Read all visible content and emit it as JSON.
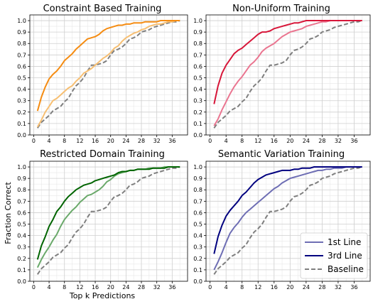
{
  "chart_data": {
    "type": "line",
    "xlabel": "Top k Predictions",
    "ylabel": "Fraction Correct",
    "xlim": [
      -1,
      40
    ],
    "ylim": [
      0,
      1.05
    ],
    "xticks": [
      0,
      4,
      8,
      12,
      16,
      20,
      24,
      28,
      32,
      36
    ],
    "yticks": [
      0.0,
      0.1,
      0.2,
      0.3,
      0.4,
      0.5,
      0.6,
      0.7,
      0.8,
      0.9,
      1.0
    ],
    "grid": true,
    "legend": {
      "placement": "bottom-right",
      "panel": 3,
      "entries": [
        {
          "label": "1st Line",
          "color": "#6e6eb4",
          "dashed": false
        },
        {
          "label": "3rd Line",
          "color": "#00007f",
          "dashed": false
        },
        {
          "label": "Baseline",
          "color": "#7f7f7f",
          "dashed": true
        }
      ]
    },
    "baseline": {
      "name": "Baseline",
      "color": "#7f7f7f",
      "x": [
        1,
        2,
        3,
        4,
        5,
        6,
        7,
        8,
        9,
        10,
        11,
        12,
        13,
        14,
        15,
        16,
        17,
        18,
        19,
        20,
        21,
        22,
        23,
        24,
        25,
        26,
        27,
        28,
        29,
        30,
        31,
        32,
        33,
        34,
        35,
        36,
        37,
        38
      ],
      "y": [
        0.06,
        0.11,
        0.14,
        0.17,
        0.21,
        0.23,
        0.25,
        0.29,
        0.32,
        0.38,
        0.43,
        0.46,
        0.5,
        0.56,
        0.61,
        0.61,
        0.62,
        0.63,
        0.65,
        0.7,
        0.74,
        0.75,
        0.77,
        0.8,
        0.84,
        0.85,
        0.87,
        0.9,
        0.91,
        0.92,
        0.94,
        0.95,
        0.96,
        0.97,
        0.98,
        0.99,
        0.99,
        1.0
      ]
    },
    "panels": [
      {
        "title": "Constraint Based Training",
        "series": [
          {
            "color": "#f7bf72",
            "y": [
              0.07,
              0.13,
              0.2,
              0.25,
              0.3,
              0.32,
              0.35,
              0.38,
              0.41,
              0.43,
              0.47,
              0.5,
              0.54,
              0.56,
              0.58,
              0.61,
              0.64,
              0.67,
              0.69,
              0.72,
              0.76,
              0.78,
              0.82,
              0.85,
              0.87,
              0.89,
              0.9,
              0.92,
              0.93,
              0.95,
              0.96,
              0.97,
              0.97,
              0.98,
              0.99,
              0.99,
              1.0,
              1.0
            ]
          },
          {
            "color": "#f58c12",
            "y": [
              0.21,
              0.33,
              0.42,
              0.49,
              0.53,
              0.56,
              0.6,
              0.65,
              0.68,
              0.71,
              0.75,
              0.78,
              0.81,
              0.84,
              0.85,
              0.86,
              0.88,
              0.91,
              0.93,
              0.94,
              0.95,
              0.96,
              0.96,
              0.97,
              0.97,
              0.98,
              0.98,
              0.98,
              0.99,
              0.99,
              0.99,
              0.99,
              1.0,
              1.0,
              1.0,
              1.0,
              1.0,
              1.0
            ]
          }
        ]
      },
      {
        "title": "Non-Uniform Training",
        "series": [
          {
            "color": "#ea7590",
            "y": [
              0.08,
              0.14,
              0.22,
              0.29,
              0.36,
              0.42,
              0.47,
              0.51,
              0.56,
              0.61,
              0.64,
              0.68,
              0.73,
              0.76,
              0.78,
              0.8,
              0.83,
              0.86,
              0.88,
              0.9,
              0.91,
              0.92,
              0.93,
              0.95,
              0.96,
              0.97,
              0.98,
              0.99,
              0.99,
              1.0,
              1.0,
              1.0,
              1.0,
              1.0,
              1.0,
              1.0,
              1.0,
              1.0
            ]
          },
          {
            "color": "#d71639",
            "y": [
              0.27,
              0.43,
              0.54,
              0.61,
              0.66,
              0.71,
              0.74,
              0.76,
              0.79,
              0.82,
              0.85,
              0.88,
              0.9,
              0.9,
              0.91,
              0.93,
              0.94,
              0.95,
              0.96,
              0.97,
              0.98,
              0.98,
              0.99,
              1.0,
              1.0,
              1.0,
              1.0,
              1.0,
              1.0,
              1.0,
              1.0,
              1.0,
              1.0,
              1.0,
              1.0,
              1.0,
              1.0,
              1.0
            ]
          }
        ]
      },
      {
        "title": "Restricted Domain Training",
        "series": [
          {
            "color": "#6aa96a",
            "y": [
              0.12,
              0.19,
              0.25,
              0.3,
              0.36,
              0.41,
              0.48,
              0.54,
              0.58,
              0.62,
              0.65,
              0.69,
              0.72,
              0.75,
              0.76,
              0.78,
              0.8,
              0.83,
              0.87,
              0.89,
              0.92,
              0.94,
              0.95,
              0.96,
              0.97,
              0.97,
              0.98,
              0.98,
              0.98,
              0.99,
              0.99,
              0.99,
              0.99,
              1.0,
              1.0,
              1.0,
              1.0,
              1.0
            ]
          },
          {
            "color": "#006400",
            "y": [
              0.19,
              0.31,
              0.39,
              0.48,
              0.54,
              0.61,
              0.65,
              0.7,
              0.74,
              0.77,
              0.8,
              0.82,
              0.84,
              0.85,
              0.86,
              0.88,
              0.89,
              0.9,
              0.91,
              0.92,
              0.93,
              0.95,
              0.96,
              0.96,
              0.97,
              0.97,
              0.98,
              0.98,
              0.98,
              0.98,
              0.99,
              0.99,
              0.99,
              0.99,
              1.0,
              1.0,
              1.0,
              1.0
            ]
          }
        ]
      },
      {
        "title": "Semantic Variation Training",
        "series": [
          {
            "name": "1st Line",
            "color": "#6e6eb4",
            "y": [
              0.1,
              0.17,
              0.25,
              0.34,
              0.42,
              0.47,
              0.51,
              0.56,
              0.6,
              0.63,
              0.66,
              0.69,
              0.72,
              0.75,
              0.78,
              0.81,
              0.83,
              0.86,
              0.88,
              0.9,
              0.91,
              0.92,
              0.93,
              0.94,
              0.95,
              0.96,
              0.97,
              0.97,
              0.98,
              0.98,
              0.99,
              0.99,
              0.99,
              1.0,
              1.0,
              1.0,
              1.0,
              1.0
            ]
          },
          {
            "name": "3rd Line",
            "color": "#00007f",
            "y": [
              0.24,
              0.39,
              0.49,
              0.57,
              0.62,
              0.66,
              0.7,
              0.75,
              0.78,
              0.82,
              0.86,
              0.89,
              0.91,
              0.93,
              0.94,
              0.95,
              0.96,
              0.97,
              0.97,
              0.97,
              0.98,
              0.98,
              0.99,
              0.99,
              0.99,
              1.0,
              1.0,
              1.0,
              1.0,
              1.0,
              1.0,
              1.0,
              1.0,
              1.0,
              1.0,
              1.0,
              1.0,
              1.0
            ]
          }
        ]
      }
    ]
  }
}
